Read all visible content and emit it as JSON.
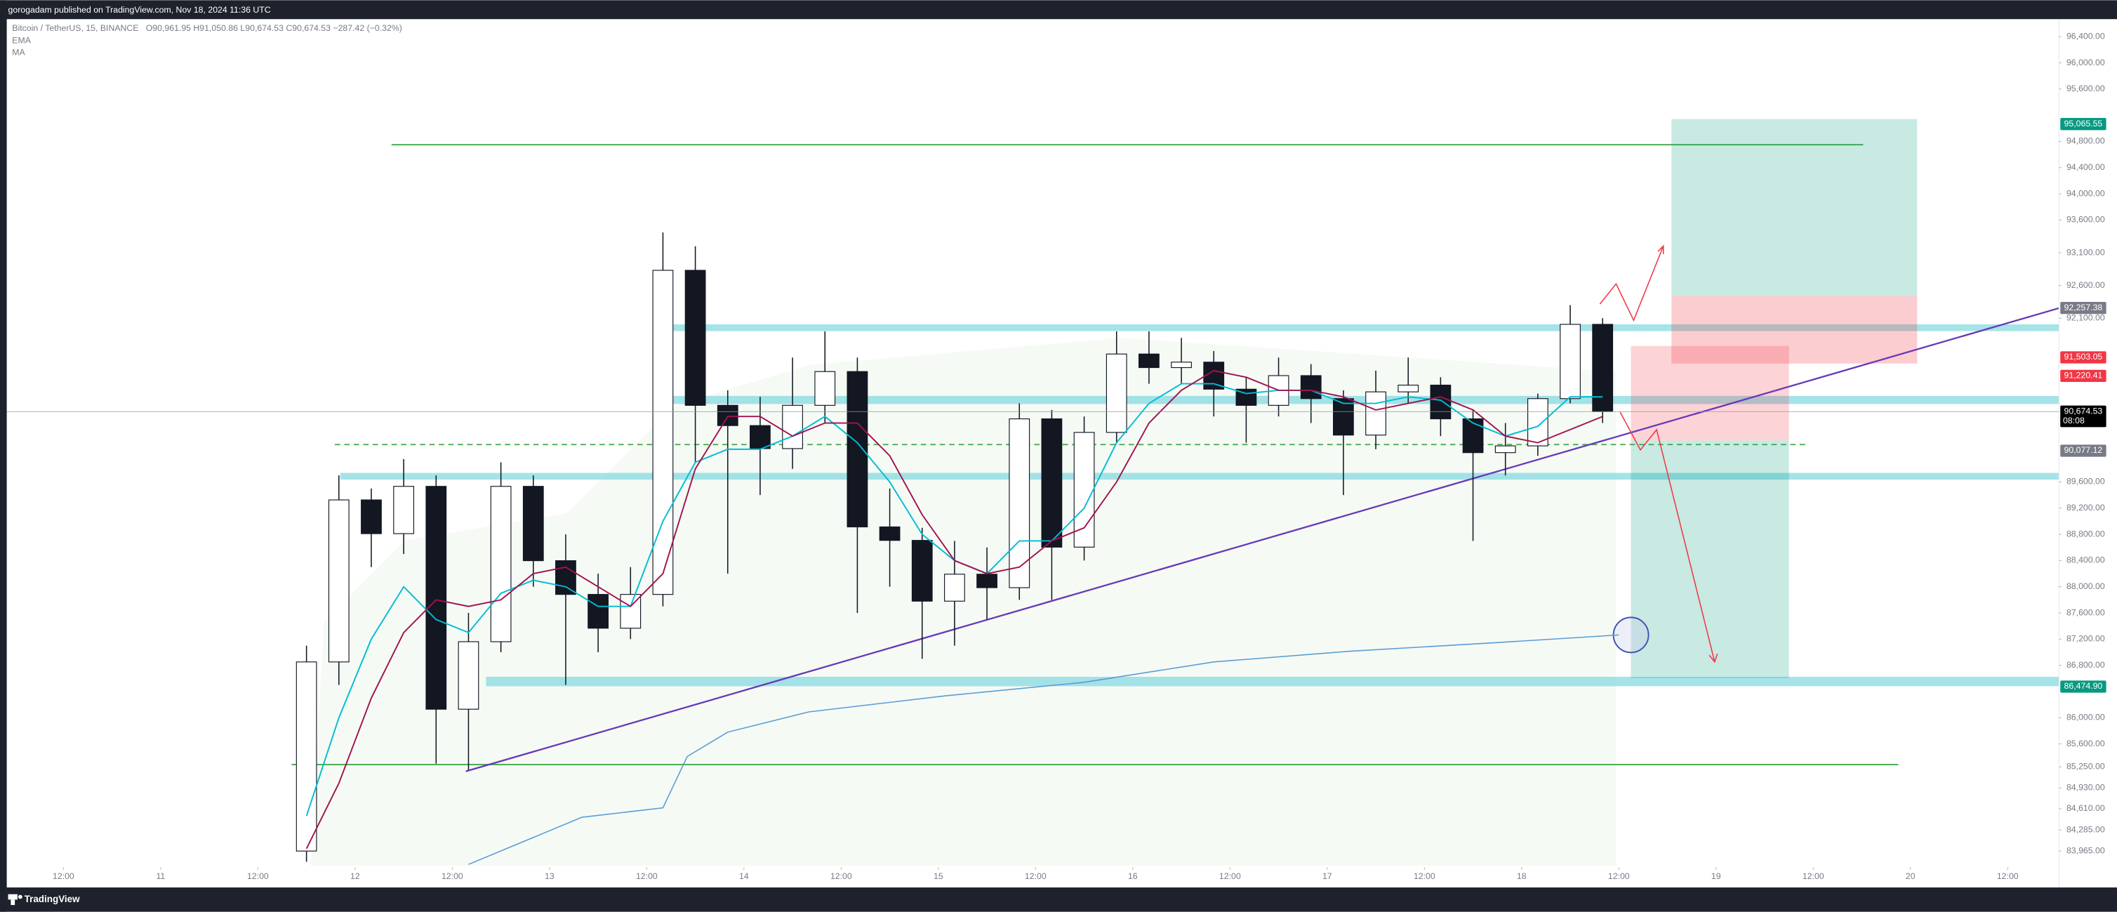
{
  "header": {
    "publisher": "gorogadam published on TradingView.com, Nov 18, 2024 11:36 UTC",
    "symbol": "Bitcoin / TetherUS, 15, BINANCE",
    "ohlc": "O90,961.95 H91,050.86 L90,674.53 C90,674.53 −287.42 (−0.32%)",
    "indicators": [
      "EMA",
      "MA"
    ]
  },
  "footer": {
    "brand": "TradingView"
  },
  "chart_data": {
    "type": "candlestick",
    "xlim": [
      5,
      258.33
    ],
    "ylim": [
      83738,
      96647
    ],
    "xticks": [
      {
        "value": 12,
        "label": "12:00"
      },
      {
        "value": 24,
        "label": "11"
      },
      {
        "value": 36,
        "label": "12:00"
      },
      {
        "value": 48,
        "label": "12"
      },
      {
        "value": 60,
        "label": "12:00"
      },
      {
        "value": 72,
        "label": "13"
      },
      {
        "value": 84,
        "label": "12:00"
      },
      {
        "value": 96,
        "label": "14"
      },
      {
        "value": 108,
        "label": "12:00"
      },
      {
        "value": 120,
        "label": "15"
      },
      {
        "value": 132,
        "label": "12:00"
      },
      {
        "value": 144,
        "label": "16"
      },
      {
        "value": 156,
        "label": "12:00"
      },
      {
        "value": 168,
        "label": "17"
      },
      {
        "value": 180,
        "label": "12:00"
      },
      {
        "value": 192,
        "label": "18"
      },
      {
        "value": 204,
        "label": "12:00"
      },
      {
        "value": 216,
        "label": "19"
      },
      {
        "value": 228,
        "label": "12:00"
      },
      {
        "value": 240,
        "label": "20"
      },
      {
        "value": 252,
        "label": "12:00"
      }
    ],
    "yticks": [
      {
        "value": 96400,
        "label": "96,400.00"
      },
      {
        "value": 96000,
        "label": "96,000.00"
      },
      {
        "value": 95600,
        "label": "95,600.00"
      },
      {
        "value": 94800,
        "label": "94,800.00"
      },
      {
        "value": 94400,
        "label": "94,400.00"
      },
      {
        "value": 94000,
        "label": "94,000.00"
      },
      {
        "value": 93600,
        "label": "93,600.00"
      },
      {
        "value": 93100,
        "label": "93,100.00"
      },
      {
        "value": 92600,
        "label": "92,600.00"
      },
      {
        "value": 92100,
        "label": "92,100.00"
      },
      {
        "value": 89600,
        "label": "89,600.00"
      },
      {
        "value": 89200,
        "label": "89,200.00"
      },
      {
        "value": 88800,
        "label": "88,800.00"
      },
      {
        "value": 88400,
        "label": "88,400.00"
      },
      {
        "value": 88000,
        "label": "88,000.00"
      },
      {
        "value": 87600,
        "label": "87,600.00"
      },
      {
        "value": 87200,
        "label": "87,200.00"
      },
      {
        "value": 86800,
        "label": "86,800.00"
      },
      {
        "value": 86000,
        "label": "86,000.00"
      },
      {
        "value": 85600,
        "label": "85,600.00"
      },
      {
        "value": 85250,
        "label": "85,250.00"
      },
      {
        "value": 84930,
        "label": "84,930.00"
      },
      {
        "value": 84610,
        "label": "84,610.00"
      },
      {
        "value": 84285,
        "label": "84,285.00"
      },
      {
        "value": 83965,
        "label": "83,965.00"
      }
    ],
    "up_color": "#ffffff",
    "down_color": "#131722",
    "x": [
      42,
      46,
      50,
      54,
      58,
      62,
      66,
      70,
      74,
      78,
      82,
      86,
      90,
      94,
      98,
      102,
      106,
      110,
      114,
      118,
      122,
      126,
      130,
      134,
      138,
      142,
      146,
      150,
      154,
      158,
      162,
      166,
      170,
      174,
      178,
      182,
      186,
      190,
      194,
      198,
      202
    ],
    "open": [
      83964,
      86852,
      89326,
      88811,
      89533,
      86130,
      87161,
      89533,
      88398,
      87883,
      87367,
      87883,
      92832,
      90770,
      90461,
      90110,
      90770,
      91286,
      88914,
      88708,
      87780,
      88192,
      87986,
      90564,
      88605,
      90357,
      91554,
      91347,
      91430,
      91017,
      90770,
      91224,
      90873,
      90316,
      90976,
      91079,
      90564,
      90048,
      90151,
      90873,
      92007
    ],
    "high": [
      87100,
      89700,
      89500,
      89950,
      89700,
      87600,
      89900,
      89700,
      88800,
      88200,
      88300,
      93410,
      93200,
      91000,
      90900,
      91500,
      91900,
      91500,
      89500,
      88900,
      88700,
      88600,
      90800,
      90700,
      90600,
      91900,
      91900,
      91800,
      91600,
      91200,
      91500,
      91400,
      91000,
      91300,
      91500,
      91200,
      90700,
      90500,
      90950,
      92300,
      92100
    ],
    "low": [
      83800,
      86500,
      88300,
      88500,
      85300,
      85200,
      87000,
      88000,
      86500,
      87000,
      87200,
      87700,
      89900,
      88200,
      89400,
      89800,
      90500,
      87600,
      88000,
      86900,
      87100,
      87500,
      87800,
      87800,
      88400,
      90200,
      91100,
      91100,
      90600,
      90200,
      90600,
      90500,
      89400,
      90100,
      90800,
      90300,
      88700,
      89700,
      90000,
      90800,
      90500
    ],
    "close": [
      86852,
      89326,
      88811,
      89533,
      86130,
      87161,
      89533,
      88398,
      87883,
      87367,
      87883,
      92832,
      90770,
      90461,
      90110,
      90770,
      91286,
      88914,
      88708,
      87780,
      88192,
      87986,
      90564,
      88605,
      90357,
      91554,
      91347,
      91430,
      91017,
      90770,
      91224,
      90873,
      90316,
      90976,
      91079,
      90564,
      90048,
      90151,
      90873,
      92007,
      90675
    ],
    "series": [
      {
        "name": "EMA",
        "color": "#00bcd4",
        "values": [
          84500,
          86000,
          87200,
          88000,
          87500,
          87300,
          87900,
          88100,
          88000,
          87700,
          87700,
          89000,
          89900,
          90100,
          90100,
          90300,
          90600,
          90200,
          89600,
          88800,
          88400,
          88200,
          88700,
          88700,
          89200,
          90200,
          90800,
          91100,
          91100,
          90950,
          91000,
          91000,
          90800,
          90800,
          90900,
          90850,
          90500,
          90300,
          90450,
          90900,
          90900
        ]
      },
      {
        "name": "MA",
        "color": "#a0134f",
        "values": [
          84000,
          85000,
          86300,
          87300,
          87800,
          87700,
          87800,
          88200,
          88300,
          88000,
          87700,
          88200,
          89800,
          90600,
          90600,
          90300,
          90500,
          90500,
          90000,
          89100,
          88400,
          88200,
          88300,
          88700,
          88900,
          89600,
          90500,
          91000,
          91300,
          91200,
          91000,
          91000,
          90900,
          90700,
          90800,
          90900,
          90700,
          90300,
          90200,
          90400,
          90600
        ]
      }
    ],
    "anchored_line": {
      "color": "#5b9bd5",
      "x": [
        62,
        76,
        86,
        89,
        94,
        104,
        121,
        138,
        154,
        171,
        188,
        204
      ],
      "values": [
        83760,
        84480,
        84624,
        85408,
        85780,
        86089,
        86336,
        86541,
        86852,
        87017,
        87140,
        87264
      ]
    },
    "price_tags": [
      {
        "value": 95065.55,
        "label": "95,065.55",
        "color": "#089981"
      },
      {
        "value": 92257.38,
        "label": "92,257.38",
        "color": "#787b86"
      },
      {
        "value": 91503.05,
        "label": "91,503.05",
        "color": "#f23645"
      },
      {
        "value": 91220.41,
        "label": "91,220.41",
        "color": "#f23645"
      },
      {
        "value": 90674.53,
        "label": "90,674.53",
        "color": "#000000",
        "countdown": "08:08"
      },
      {
        "value": 90077.12,
        "label": "90,077.12",
        "color": "#787b86"
      },
      {
        "value": 86474.9,
        "label": "86,474.90",
        "color": "#089981"
      }
    ]
  }
}
